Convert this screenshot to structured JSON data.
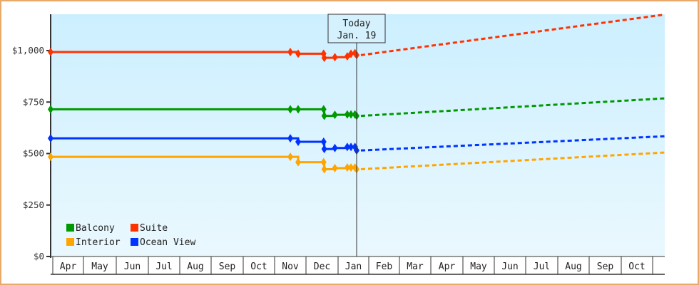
{
  "chart_data": {
    "type": "line",
    "title": "",
    "xlabel": "",
    "ylabel": "",
    "ylim": [
      0,
      1150
    ],
    "y_ticks": [
      {
        "value": 0,
        "label": "$0"
      },
      {
        "value": 250,
        "label": "$250"
      },
      {
        "value": 500,
        "label": "$500"
      },
      {
        "value": 750,
        "label": "$750"
      },
      {
        "value": 1000,
        "label": "$1,000"
      }
    ],
    "x_months": [
      "Apr",
      "May",
      "Jun",
      "Jul",
      "Aug",
      "Sep",
      "Oct",
      "Nov",
      "Dec",
      "Jan",
      "Feb",
      "Mar",
      "Apr",
      "May",
      "Jun",
      "Jul",
      "Aug",
      "Sep",
      "Oct"
    ],
    "today_marker": {
      "line1": "Today",
      "line2": "Jan. 19"
    },
    "legend_position": "bottom-left inside plot",
    "grid": false,
    "series": [
      {
        "name": "Suite",
        "color": "#ff3300",
        "history": [
          [
            "Apr start",
            993
          ],
          [
            "Nov 8",
            993
          ],
          [
            "Nov 10",
            985
          ],
          [
            "Dec 1",
            985
          ],
          [
            "Dec 2",
            965
          ],
          [
            "Dec 8",
            968
          ],
          [
            "Dec 15",
            972
          ],
          [
            "Dec 18",
            985
          ],
          [
            "Dec 20",
            988
          ],
          [
            "Jan 19",
            978
          ]
        ],
        "forecast": [
          [
            "Jan 19",
            978
          ],
          [
            "Oct end",
            1175
          ]
        ]
      },
      {
        "name": "Balcony",
        "color": "#009900",
        "history": [
          [
            "Apr start",
            715
          ],
          [
            "Nov 8",
            715
          ],
          [
            "Nov 10",
            715
          ],
          [
            "Dec 1",
            715
          ],
          [
            "Dec 2",
            683
          ],
          [
            "Dec 8",
            688
          ],
          [
            "Dec 15",
            690
          ],
          [
            "Dec 18",
            690
          ],
          [
            "Dec 20",
            690
          ],
          [
            "Jan 19",
            683
          ]
        ],
        "forecast": [
          [
            "Jan 19",
            683
          ],
          [
            "Oct end",
            768
          ]
        ]
      },
      {
        "name": "Ocean View",
        "color": "#0033ff",
        "history": [
          [
            "Apr start",
            574
          ],
          [
            "Nov 8",
            574
          ],
          [
            "Nov 10",
            557
          ],
          [
            "Dec 1",
            557
          ],
          [
            "Dec 2",
            522
          ],
          [
            "Dec 8",
            527
          ],
          [
            "Dec 15",
            532
          ],
          [
            "Dec 18",
            532
          ],
          [
            "Dec 20",
            532
          ],
          [
            "Jan 19",
            515
          ]
        ],
        "forecast": [
          [
            "Jan 19",
            515
          ],
          [
            "Oct end",
            584
          ]
        ]
      },
      {
        "name": "Interior",
        "color": "#ffa500",
        "history": [
          [
            "Apr start",
            484
          ],
          [
            "Nov 8",
            484
          ],
          [
            "Nov 10",
            458
          ],
          [
            "Dec 1",
            458
          ],
          [
            "Dec 2",
            424
          ],
          [
            "Dec 8",
            429
          ],
          [
            "Dec 15",
            432
          ],
          [
            "Dec 18",
            432
          ],
          [
            "Dec 20",
            432
          ],
          [
            "Jan 19",
            424
          ]
        ],
        "forecast": [
          [
            "Jan 19",
            424
          ],
          [
            "Oct end",
            505
          ]
        ]
      }
    ]
  },
  "legend": [
    {
      "name": "Balcony",
      "color": "#009900"
    },
    {
      "name": "Suite",
      "color": "#ff3300"
    },
    {
      "name": "Interior",
      "color": "#ffa500"
    },
    {
      "name": "Ocean View",
      "color": "#0033ff"
    }
  ]
}
